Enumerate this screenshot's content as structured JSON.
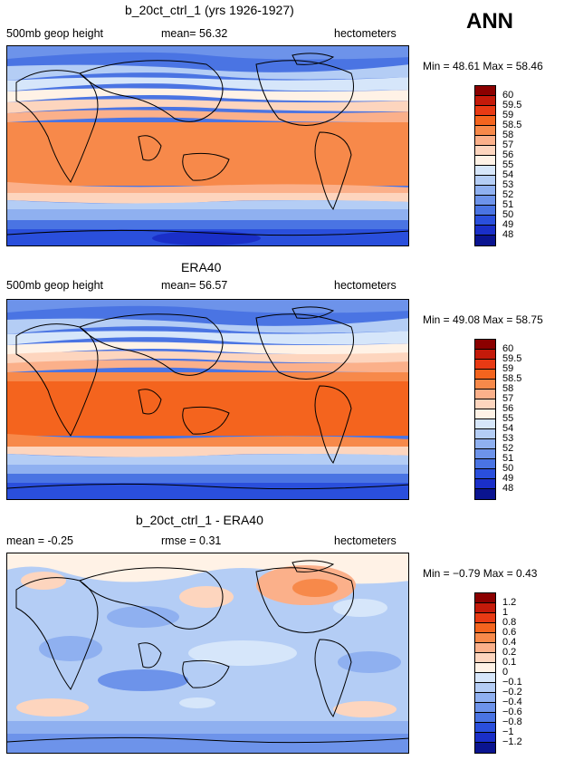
{
  "season": "ANN",
  "panels": [
    {
      "title": "b_20ct_ctrl_1 (yrs 1926-1927)",
      "left_label": "500mb geop height",
      "mid_label": "mean=  56.32",
      "right_label": "hectometers",
      "minmax": "Min =  48.61  Max =  58.46",
      "colorbar_labels": [
        "60",
        "59.5",
        "59",
        "58.5",
        "58",
        "57",
        "56",
        "55",
        "54",
        "53",
        "52",
        "51",
        "50",
        "49",
        "48"
      ],
      "colorbar_colors": [
        "#8b0000",
        "#c41a0a",
        "#e83a14",
        "#f4641e",
        "#f7894a",
        "#fbb08a",
        "#fdd5be",
        "#fff2e6",
        "#d6e6fa",
        "#b4cdf5",
        "#8fb0f0",
        "#6d93ea",
        "#4a74e3",
        "#2a4fdc",
        "#1a2fc8",
        "#0a1490"
      ]
    },
    {
      "title": "ERA40",
      "left_label": "500mb geop height",
      "mid_label": "mean=  56.57",
      "right_label": "hectometers",
      "minmax": "Min =  49.08  Max =  58.75",
      "colorbar_labels": [
        "60",
        "59.5",
        "59",
        "58.5",
        "58",
        "57",
        "56",
        "55",
        "54",
        "53",
        "52",
        "51",
        "50",
        "49",
        "48"
      ],
      "colorbar_colors": [
        "#8b0000",
        "#c41a0a",
        "#e83a14",
        "#f4641e",
        "#f7894a",
        "#fbb08a",
        "#fdd5be",
        "#fff2e6",
        "#d6e6fa",
        "#b4cdf5",
        "#8fb0f0",
        "#6d93ea",
        "#4a74e3",
        "#2a4fdc",
        "#1a2fc8",
        "#0a1490"
      ]
    },
    {
      "title": "b_20ct_ctrl_1 - ERA40",
      "left_label": "mean =   -0.25",
      "mid_label": "rmse =   0.31",
      "right_label": "hectometers",
      "minmax": "Min =  −0.79  Max =   0.43",
      "colorbar_labels": [
        "1.2",
        "1",
        "0.8",
        "0.6",
        "0.4",
        "0.2",
        "0.1",
        "0",
        "−0.1",
        "−0.2",
        "−0.4",
        "−0.6",
        "−0.8",
        "−1",
        "−1.2"
      ],
      "colorbar_colors": [
        "#8b0000",
        "#c41a0a",
        "#e83a14",
        "#f4641e",
        "#f7894a",
        "#fbb08a",
        "#fdd5be",
        "#fff2e6",
        "#d6e6fa",
        "#b4cdf5",
        "#8fb0f0",
        "#6d93ea",
        "#4a74e3",
        "#2a4fdc",
        "#1a2fc8",
        "#0a1490"
      ]
    }
  ]
}
